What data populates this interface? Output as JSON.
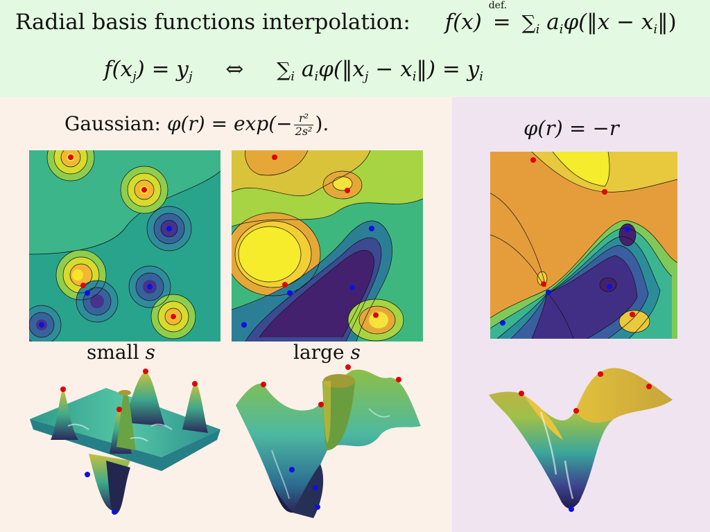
{
  "header": {
    "title": "Radial basis functions interpolation:",
    "definition": {
      "lhs": "f(x)",
      "def_label": "def.",
      "eq": "=",
      "rhs_sum": "∑",
      "rhs_index": "i",
      "rhs_term": "a",
      "rhs_body": "φ(‖x − x",
      "rhs_end": "‖)"
    },
    "equation2": {
      "lhs": "f(x",
      "lhs_sub": "j",
      "lhs_end": ") = y",
      "lhs_end_sub": "j",
      "iff": "⇔",
      "sum": "∑",
      "sum_index": "i",
      "term": "a",
      "term_sub": "i",
      "body": "φ(‖x",
      "body_sub": "j",
      "body_mid": " − x",
      "body_mid_sub": "i",
      "body_end": "‖) = y",
      "body_end_sub": "i"
    }
  },
  "gaussian": {
    "label": "Gaussian:",
    "lhs": "φ(r) = exp(−",
    "num": "r²",
    "den": "2s²",
    "end": ")."
  },
  "right_heading": "φ(r) = −r",
  "captions": {
    "small": "small",
    "small_var": "s",
    "large": "large",
    "large_var": "s"
  },
  "colors": {
    "header_bg": "#e3f9e1",
    "left_bg": "#fbf1e8",
    "right_bg": "#f0e4f0",
    "red_point": "#e00000",
    "blue_point": "#1010e0",
    "viridis_low": "#440d6d",
    "viridis_mid": "#26a88a",
    "viridis_high": "#f4f12a"
  }
}
